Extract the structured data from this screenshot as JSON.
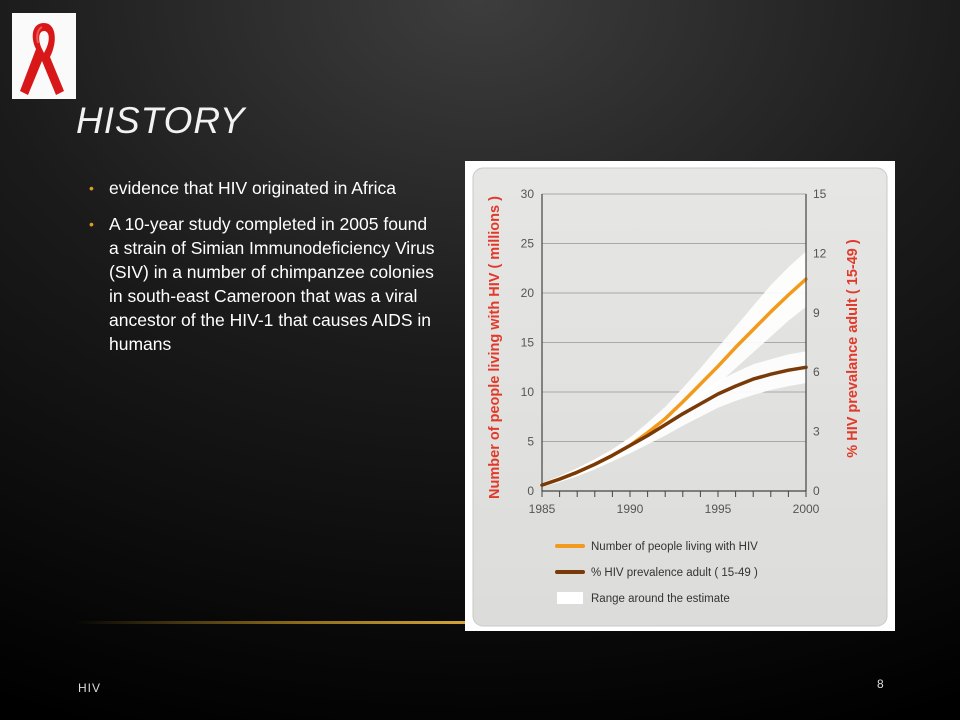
{
  "slide": {
    "title": "HISTORY",
    "bullets": [
      "evidence that HIV originated in Africa",
      "A 10-year study completed in 2005 found a strain of Simian Immunodeficiency Virus (SIV) in a number of chimpanzee colonies in south-east Cameroon that was a viral ancestor of the HIV-1 that causes AIDS in humans"
    ],
    "footer": "HIV",
    "page_number": "8",
    "accent_color": "#d6a020",
    "logo_icon": "red-ribbon-icon"
  },
  "chart_data": {
    "type": "line",
    "title": "",
    "x": [
      1985,
      1986,
      1987,
      1988,
      1989,
      1990,
      1991,
      1992,
      1993,
      1994,
      1995,
      1996,
      1997,
      1998,
      1999,
      2000
    ],
    "xticks": [
      1985,
      1990,
      1995,
      2000
    ],
    "xlim": [
      1985,
      2000
    ],
    "ylabel_left": "Number of people living with HIV ( millions )",
    "ylim_left": [
      0,
      30
    ],
    "yticks_left": [
      0,
      5,
      10,
      15,
      20,
      25,
      30
    ],
    "ylabel_right": "% HIV prevalance adult ( 15-49 )",
    "ylim_right": [
      0,
      15
    ],
    "yticks_right": [
      0,
      3,
      6,
      9,
      12,
      15
    ],
    "grid": true,
    "legend_position": "bottom",
    "series": [
      {
        "name": "Number of people living with HIV",
        "axis": "left",
        "color": "#f29a1c",
        "values": [
          0.6,
          1.2,
          1.9,
          2.7,
          3.6,
          4.6,
          5.9,
          7.3,
          9.0,
          10.8,
          12.6,
          14.5,
          16.3,
          18.1,
          19.8,
          21.4
        ],
        "range_low": [
          0.4,
          0.9,
          1.5,
          2.2,
          3.0,
          3.9,
          5.0,
          6.2,
          7.6,
          9.2,
          10.8,
          12.4,
          14.0,
          15.6,
          17.2,
          18.6
        ],
        "range_high": [
          0.8,
          1.5,
          2.3,
          3.2,
          4.2,
          5.4,
          6.9,
          8.5,
          10.4,
          12.4,
          14.5,
          16.6,
          18.7,
          20.8,
          22.6,
          24.2
        ]
      },
      {
        "name": "% HIV prevalence adult ( 15-49 )",
        "axis": "right",
        "color": "#7a3a08",
        "values": [
          0.3,
          0.6,
          0.95,
          1.35,
          1.8,
          2.3,
          2.8,
          3.35,
          3.9,
          4.4,
          4.9,
          5.3,
          5.65,
          5.9,
          6.1,
          6.25
        ],
        "range_low": [
          0.2,
          0.45,
          0.75,
          1.1,
          1.5,
          1.9,
          2.35,
          2.8,
          3.3,
          3.75,
          4.2,
          4.55,
          4.85,
          5.1,
          5.3,
          5.45
        ],
        "range_high": [
          0.4,
          0.75,
          1.15,
          1.6,
          2.1,
          2.7,
          3.25,
          3.85,
          4.45,
          5.0,
          5.55,
          6.0,
          6.4,
          6.65,
          6.9,
          7.05
        ]
      }
    ],
    "legend": [
      {
        "label": "Number of people living with HIV",
        "color": "#f29a1c"
      },
      {
        "label": "% HIV prevalence adult ( 15-49 )",
        "color": "#7a3a08"
      },
      {
        "label": "Range around the estimate",
        "color": "#ffffff"
      }
    ],
    "axis_label_color": "#e23a2a"
  }
}
